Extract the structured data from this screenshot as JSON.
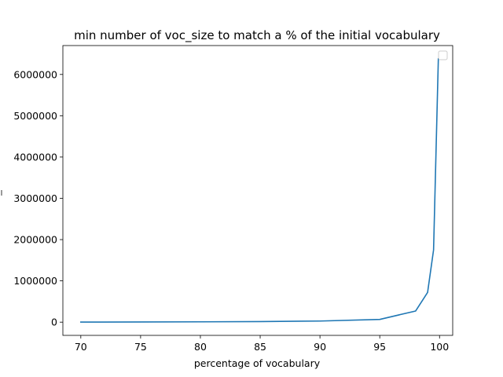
{
  "chart_data": {
    "type": "line",
    "title": "min number of voc_size to match a % of the initial vocabulary",
    "xlabel": "percentage of vocabulary",
    "ylabel": "",
    "xlim": [
      68.5,
      101.1
    ],
    "ylim": [
      -320000,
      6700000
    ],
    "xticks": [
      70,
      75,
      80,
      85,
      90,
      95,
      100
    ],
    "xtick_labels": [
      "70",
      "75",
      "80",
      "85",
      "90",
      "95",
      "100"
    ],
    "yticks": [
      0,
      1000000,
      2000000,
      3000000,
      4000000,
      5000000,
      6000000
    ],
    "ytick_labels": [
      "0",
      "1000000",
      "2000000",
      "3000000",
      "4000000",
      "5000000",
      "6000000"
    ],
    "grid": false,
    "legend": {
      "placement": "upper-right",
      "entries": []
    },
    "series": [
      {
        "color": "#1f77b4",
        "x": [
          70,
          75,
          80,
          85,
          90,
          95,
          98,
          99,
          99.5,
          99.9
        ],
        "y": [
          2000,
          4000,
          8000,
          15000,
          27000,
          67000,
          270000,
          720000,
          1750000,
          6380000
        ]
      }
    ]
  }
}
